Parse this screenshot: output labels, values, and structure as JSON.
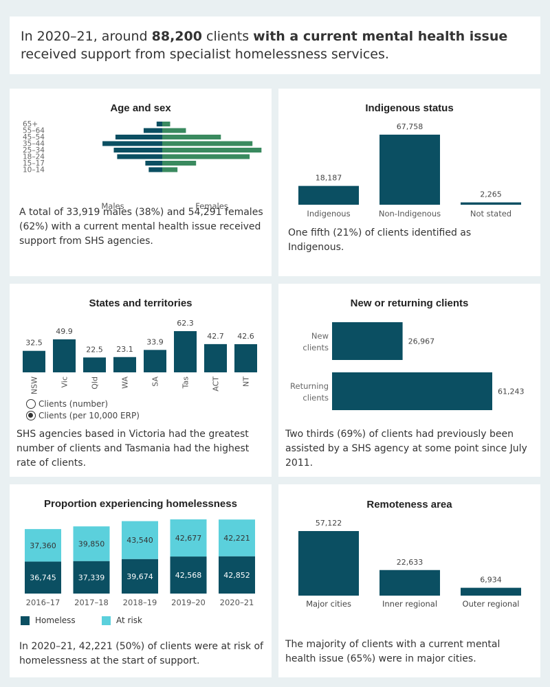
{
  "header": {
    "pre": "In 2020–21, around ",
    "bold1": "88,200",
    "mid": " clients ",
    "bold2": "with a current mental health issue",
    "post": " received support from specialist homelessness services."
  },
  "colors": {
    "dark": "#0b4f62",
    "green": "#3a8a5f",
    "light": "#5bd0dc",
    "axis": "#666666"
  },
  "age_sex": {
    "title": "Age and sex",
    "males_label": "Males",
    "females_label": "Females",
    "caption": "A total of 33,919 males (38%) and 54,291 females (62%) with a current mental health issue received support from SHS agencies.",
    "chart_data": {
      "type": "bar",
      "orientation": "horizontal-pyramid",
      "categories": [
        "65+",
        "55–64",
        "45–54",
        "35–44",
        "25–34",
        "18–24",
        "15–17",
        "10–14"
      ],
      "series": [
        {
          "name": "Males",
          "values": [
            1.0,
            3.3,
            8.3,
            10.6,
            8.6,
            8.0,
            3.0,
            2.4
          ]
        },
        {
          "name": "Females",
          "values": [
            1.4,
            4.2,
            10.4,
            16.0,
            17.6,
            15.5,
            6.0,
            2.7
          ]
        }
      ]
    }
  },
  "indigenous": {
    "title": "Indigenous status",
    "caption": "One fifth (21%) of clients identified as Indigenous.",
    "chart_data": {
      "type": "bar",
      "categories": [
        "Indigenous",
        "Non-Indigenous",
        "Not stated"
      ],
      "values": [
        18187,
        67758,
        2265
      ],
      "labels": [
        "18,187",
        "67,758",
        "2,265"
      ]
    }
  },
  "states": {
    "title": "States and territories",
    "radio_options": [
      "Clients (number)",
      "Clients (per 10,000 ERP)"
    ],
    "radio_selected": 1,
    "caption": "SHS agencies based in Victoria had the greatest number of clients and Tasmania had the highest rate of clients.",
    "chart_data": {
      "type": "bar",
      "categories": [
        "NSW",
        "Vic",
        "Qld",
        "WA",
        "SA",
        "Tas",
        "ACT",
        "NT"
      ],
      "values": [
        32.5,
        49.9,
        22.5,
        23.1,
        33.9,
        62.3,
        42.7,
        42.6
      ],
      "labels": [
        "32.5",
        "49.9",
        "22.5",
        "23.1",
        "33.9",
        "62.3",
        "42.7",
        "42.6"
      ]
    }
  },
  "new_returning": {
    "title": "New or returning clients",
    "caption": "Two thirds (69%) of clients  had previously been assisted by a SHS agency at some point since July 2011.",
    "chart_data": {
      "type": "bar",
      "orientation": "horizontal",
      "categories": [
        [
          "New",
          "clients"
        ],
        [
          "Returning",
          "clients"
        ]
      ],
      "values": [
        26967,
        61243
      ],
      "labels": [
        "26,967",
        "61,243"
      ]
    }
  },
  "homelessness": {
    "title": "Proportion experiencing homelessness",
    "caption": "In 2020–21, 42,221 (50%) of clients were at risk of homelessness at the start of support.",
    "legend": [
      "Homeless",
      "At risk"
    ],
    "chart_data": {
      "type": "bar",
      "stacked": true,
      "categories": [
        "2016–17",
        "2017–18",
        "2018–19",
        "2019–20",
        "2020–21"
      ],
      "series": [
        {
          "name": "Homeless",
          "values": [
            36745,
            37339,
            39674,
            42568,
            42852
          ],
          "labels": [
            "36,745",
            "37,339",
            "39,674",
            "42,568",
            "42,852"
          ]
        },
        {
          "name": "At risk",
          "values": [
            37360,
            39850,
            43540,
            42677,
            42221
          ],
          "labels": [
            "37,360",
            "39,850",
            "43,540",
            "42,677",
            "42,221"
          ]
        }
      ]
    }
  },
  "remoteness": {
    "title": "Remoteness area",
    "caption": "The majority  of clients with a current mental health issue (65%) were in major cities.",
    "chart_data": {
      "type": "bar",
      "categories": [
        "Major cities",
        "Inner regional",
        "Outer regional"
      ],
      "values": [
        57122,
        22633,
        6934
      ],
      "labels": [
        "57,122",
        "22,633",
        "6,934"
      ]
    }
  }
}
